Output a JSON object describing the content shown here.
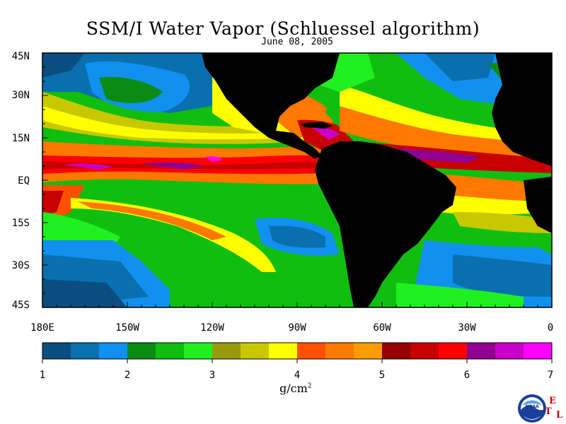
{
  "title": "SSM/I Water Vapor (Schluessel algorithm)",
  "date": "June 08, 2005",
  "lat_labels": [
    "45N",
    "30N",
    "15N",
    "EQ",
    "15S",
    "30S",
    "45S"
  ],
  "lon_labels": [
    "180E",
    "150W",
    "120W",
    "90W",
    "60W",
    "30W",
    "0"
  ],
  "colorbar": {
    "colors": [
      "#0a4e80",
      "#0a6fae",
      "#1190f0",
      "#0a8c14",
      "#10be10",
      "#20f020",
      "#9a9a10",
      "#c8c800",
      "#ffff00",
      "#ff5000",
      "#ff7800",
      "#ff9c00",
      "#960000",
      "#c80000",
      "#ff0000",
      "#900090",
      "#c800c8",
      "#ff00ff"
    ],
    "ticks": [
      "1",
      "2",
      "3",
      "4",
      "5",
      "6",
      "7"
    ],
    "unit": "g/cm",
    "unit_sup": "2"
  },
  "logo": {
    "agency_text": "NOAA",
    "etl_letters": [
      "E",
      "T",
      "L"
    ]
  },
  "land_color": "#000000"
}
